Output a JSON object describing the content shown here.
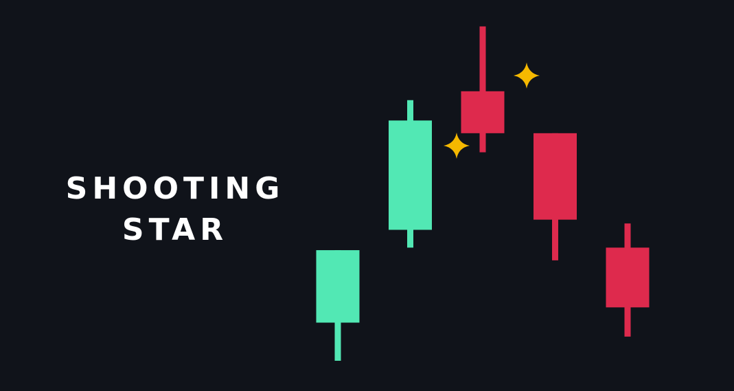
{
  "title": {
    "line1": "SHOOTING",
    "line2": "STAR"
  },
  "colors": {
    "background": "#10131a",
    "bullish": "#52e8b4",
    "bearish": "#de2a4d",
    "sparkle": "#f5b800",
    "text": "#ffffff"
  },
  "chart_data": {
    "type": "candlestick",
    "candles": [
      {
        "index": 1,
        "direction": "up",
        "open": 1.5,
        "close": 4.35,
        "high": 4.35,
        "low": 0
      },
      {
        "index": 2,
        "direction": "up",
        "open": 5.15,
        "close": 9.45,
        "high": 10.25,
        "low": 4.45
      },
      {
        "index": 3,
        "direction": "down",
        "open": 10.6,
        "close": 8.95,
        "high": 13.15,
        "low": 8.2
      },
      {
        "index": 4,
        "direction": "down",
        "open": 8.95,
        "close": 5.55,
        "high": 8.95,
        "low": 3.95
      },
      {
        "index": 5,
        "direction": "down",
        "open": 4.45,
        "close": 2.1,
        "high": 5.4,
        "low": 0.95
      }
    ],
    "ylim": [
      0,
      13.5
    ],
    "highlighted_candle": 3,
    "sparkle_icons": [
      "sparkle-icon",
      "sparkle-icon"
    ]
  }
}
